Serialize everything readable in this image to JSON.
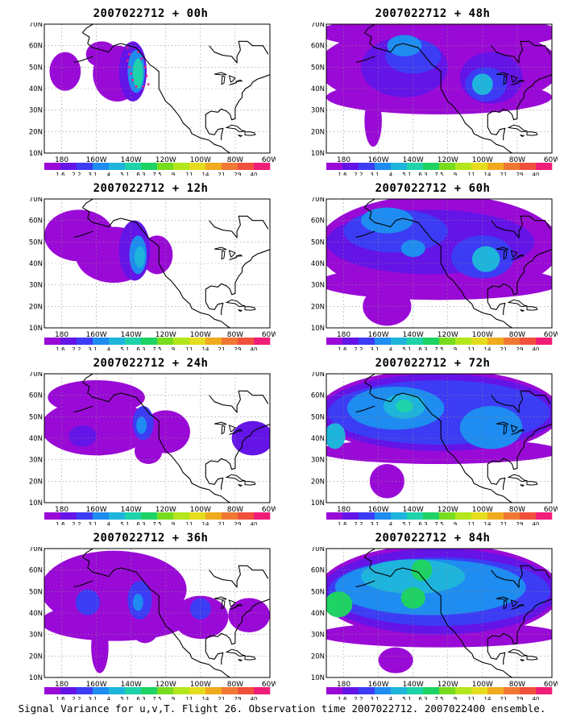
{
  "figure": {
    "caption": "Signal Variance for u,v,T. Flight 26. Observation time 2007022712. 2007022400 ensemble."
  },
  "colors": {
    "levels": [
      "#9a0ad6",
      "#6414e6",
      "#3c3cf5",
      "#1e8cf0",
      "#1eb4dc",
      "#1ed2aa",
      "#1ed264",
      "#78dc1e",
      "#b4e61e",
      "#e6dc1e",
      "#f0aa1e",
      "#f07832",
      "#f0503c",
      "#f01e78"
    ],
    "coast": "#000000",
    "grid": "#8c8c8c",
    "marker": "#f01e78"
  },
  "chart_data": [
    {
      "type": "heatmap",
      "title": "2007022712 + 00h",
      "lead_hours": 0,
      "x_ticks": [
        "180",
        "160W",
        "140W",
        "120W",
        "100W",
        "80W",
        "60W"
      ],
      "y_ticks": [
        "10N",
        "20N",
        "30N",
        "40N",
        "50N",
        "60N",
        "70N"
      ],
      "lon_range": [
        -190,
        -60
      ],
      "lat_range": [
        10,
        70
      ],
      "grid": true,
      "colorbar_labels": [
        "1.6",
        "2.2",
        "3.1",
        "4",
        "5.1",
        "6.3",
        "7.5",
        "9",
        "11",
        "14",
        "21",
        "29",
        "40"
      ],
      "features": [
        {
          "lon": -148,
          "lat": 47,
          "rx": 14,
          "ry": 13,
          "level": 0
        },
        {
          "lon": -178,
          "lat": 48,
          "rx": 9,
          "ry": 9,
          "level": 0
        },
        {
          "lon": -157,
          "lat": 56,
          "rx": 9,
          "ry": 6,
          "level": 0
        },
        {
          "lon": -139,
          "lat": 48,
          "rx": 8,
          "ry": 14,
          "level": 1
        },
        {
          "lon": -137,
          "lat": 48,
          "rx": 5,
          "ry": 10,
          "level": 3
        },
        {
          "lon": -136,
          "lat": 47,
          "rx": 3,
          "ry": 7,
          "level": 5
        }
      ],
      "markers": [
        {
          "lon": -142,
          "lat": 59
        },
        {
          "lon": -141,
          "lat": 56
        },
        {
          "lon": -142,
          "lat": 53
        },
        {
          "lon": -141,
          "lat": 50
        },
        {
          "lon": -140,
          "lat": 47
        },
        {
          "lon": -139,
          "lat": 44
        },
        {
          "lon": -137,
          "lat": 41
        },
        {
          "lon": -133,
          "lat": 41
        },
        {
          "lon": -130,
          "lat": 42
        },
        {
          "lon": -131,
          "lat": 46
        },
        {
          "lon": -132,
          "lat": 50
        },
        {
          "lon": -134,
          "lat": 54
        },
        {
          "lon": -136,
          "lat": 57
        }
      ]
    },
    {
      "type": "heatmap",
      "title": "2007022712 + 12h",
      "lead_hours": 12,
      "x_ticks": [
        "180",
        "160W",
        "140W",
        "120W",
        "100W",
        "80W",
        "60W"
      ],
      "y_ticks": [
        "10N",
        "20N",
        "30N",
        "40N",
        "50N",
        "60N",
        "70N"
      ],
      "lon_range": [
        -190,
        -60
      ],
      "lat_range": [
        10,
        70
      ],
      "grid": true,
      "colorbar_labels": [
        "1.6",
        "2.2",
        "3.1",
        "4",
        "5.1",
        "6.3",
        "7.5",
        "9",
        "11",
        "14",
        "21",
        "29",
        "40"
      ],
      "features": [
        {
          "lon": -170,
          "lat": 53,
          "rx": 20,
          "ry": 12,
          "level": 0
        },
        {
          "lon": -150,
          "lat": 44,
          "rx": 22,
          "ry": 13,
          "level": 0
        },
        {
          "lon": -125,
          "lat": 44,
          "rx": 9,
          "ry": 9,
          "level": 0
        },
        {
          "lon": -138,
          "lat": 46,
          "rx": 9,
          "ry": 14,
          "level": 1
        },
        {
          "lon": -136,
          "lat": 44,
          "rx": 5,
          "ry": 9,
          "level": 3
        },
        {
          "lon": -135,
          "lat": 43,
          "rx": 3,
          "ry": 5,
          "level": 4
        }
      ],
      "markers": []
    },
    {
      "type": "heatmap",
      "title": "2007022712 + 24h",
      "lead_hours": 24,
      "x_ticks": [
        "180",
        "160W",
        "140W",
        "120W",
        "100W",
        "80W",
        "60W"
      ],
      "y_ticks": [
        "10N",
        "20N",
        "30N",
        "40N",
        "50N",
        "60N",
        "70N"
      ],
      "lon_range": [
        -190,
        -60
      ],
      "lat_range": [
        10,
        70
      ],
      "grid": true,
      "colorbar_labels": [
        "1.6",
        "2.2",
        "3.1",
        "4",
        "5.1",
        "6.3",
        "7.5",
        "9",
        "11",
        "14",
        "21",
        "29",
        "40"
      ],
      "features": [
        {
          "lon": -160,
          "lat": 45,
          "rx": 32,
          "ry": 13,
          "level": 0
        },
        {
          "lon": -160,
          "lat": 59,
          "rx": 28,
          "ry": 8,
          "level": 0
        },
        {
          "lon": -120,
          "lat": 43,
          "rx": 14,
          "ry": 10,
          "level": 0
        },
        {
          "lon": -130,
          "lat": 34,
          "rx": 8,
          "ry": 6,
          "level": 0
        },
        {
          "lon": -70,
          "lat": 40,
          "rx": 12,
          "ry": 8,
          "level": 1
        },
        {
          "lon": -168,
          "lat": 41,
          "rx": 8,
          "ry": 5,
          "level": 1
        },
        {
          "lon": -133,
          "lat": 47,
          "rx": 6,
          "ry": 8,
          "level": 2
        },
        {
          "lon": -134,
          "lat": 46,
          "rx": 3,
          "ry": 4,
          "level": 3
        }
      ],
      "markers": []
    },
    {
      "type": "heatmap",
      "title": "2007022712 + 36h",
      "lead_hours": 36,
      "x_ticks": [
        "180",
        "160W",
        "140W",
        "120W",
        "100W",
        "80W",
        "60W"
      ],
      "y_ticks": [
        "10N",
        "20N",
        "30N",
        "40N",
        "50N",
        "60N",
        "70N"
      ],
      "lon_range": [
        -190,
        -60
      ],
      "lat_range": [
        10,
        70
      ],
      "grid": true,
      "colorbar_labels": [
        "1.6",
        "2.2",
        "3.1",
        "4",
        "5.1",
        "6.3",
        "7.5",
        "9",
        "11",
        "14",
        "21",
        "29",
        "40"
      ],
      "features": [
        {
          "lon": -150,
          "lat": 51,
          "rx": 42,
          "ry": 18,
          "level": 0
        },
        {
          "lon": -150,
          "lat": 36,
          "rx": 42,
          "ry": 9,
          "level": 0
        },
        {
          "lon": -100,
          "lat": 38,
          "rx": 16,
          "ry": 10,
          "level": 0
        },
        {
          "lon": -72,
          "lat": 39,
          "rx": 12,
          "ry": 8,
          "level": 0
        },
        {
          "lon": -158,
          "lat": 24,
          "rx": 5,
          "ry": 12,
          "level": 0
        },
        {
          "lon": -132,
          "lat": 33,
          "rx": 8,
          "ry": 7,
          "level": 0
        },
        {
          "lon": -165,
          "lat": 45,
          "rx": 7,
          "ry": 6,
          "level": 2
        },
        {
          "lon": -135,
          "lat": 46,
          "rx": 7,
          "ry": 9,
          "level": 2
        },
        {
          "lon": -100,
          "lat": 42,
          "rx": 6,
          "ry": 5,
          "level": 2
        },
        {
          "lon": -136,
          "lat": 45,
          "rx": 3,
          "ry": 4,
          "level": 3
        }
      ],
      "markers": []
    },
    {
      "type": "heatmap",
      "title": "2007022712 + 48h",
      "lead_hours": 48,
      "x_ticks": [
        "180",
        "160W",
        "140W",
        "120W",
        "100W",
        "80W",
        "60W"
      ],
      "y_ticks": [
        "10N",
        "20N",
        "30N",
        "40N",
        "50N",
        "60N",
        "70N"
      ],
      "lon_range": [
        -190,
        -60
      ],
      "lat_range": [
        10,
        70
      ],
      "grid": true,
      "colorbar_labels": [
        "1.6",
        "2.2",
        "3.1",
        "4",
        "5.1",
        "6.3",
        "7.5",
        "9",
        "11",
        "14",
        "21",
        "29",
        "40"
      ],
      "features": [
        {
          "lon": -125,
          "lat": 50,
          "rx": 70,
          "ry": 20,
          "level": 0
        },
        {
          "lon": -125,
          "lat": 66,
          "rx": 70,
          "ry": 8,
          "level": 0
        },
        {
          "lon": -125,
          "lat": 36,
          "rx": 65,
          "ry": 8,
          "level": 0
        },
        {
          "lon": -163,
          "lat": 25,
          "rx": 5,
          "ry": 12,
          "level": 0
        },
        {
          "lon": -145,
          "lat": 50,
          "rx": 25,
          "ry": 14,
          "level": 1
        },
        {
          "lon": -95,
          "lat": 45,
          "rx": 18,
          "ry": 12,
          "level": 1
        },
        {
          "lon": -140,
          "lat": 55,
          "rx": 16,
          "ry": 8,
          "level": 2
        },
        {
          "lon": -98,
          "lat": 42,
          "rx": 12,
          "ry": 8,
          "level": 2
        },
        {
          "lon": -145,
          "lat": 60,
          "rx": 10,
          "ry": 5,
          "level": 3
        },
        {
          "lon": -100,
          "lat": 42,
          "rx": 6,
          "ry": 5,
          "level": 4
        }
      ],
      "markers": []
    },
    {
      "type": "heatmap",
      "title": "2007022712 + 60h",
      "lead_hours": 60,
      "x_ticks": [
        "180",
        "160W",
        "140W",
        "120W",
        "100W",
        "80W",
        "60W"
      ],
      "y_ticks": [
        "10N",
        "20N",
        "30N",
        "40N",
        "50N",
        "60N",
        "70N"
      ],
      "lon_range": [
        -190,
        -60
      ],
      "lat_range": [
        10,
        70
      ],
      "grid": true,
      "colorbar_labels": [
        "1.6",
        "2.2",
        "3.1",
        "4",
        "5.1",
        "6.3",
        "7.5",
        "9",
        "11",
        "14",
        "21",
        "29",
        "40"
      ],
      "features": [
        {
          "lon": -125,
          "lat": 48,
          "rx": 70,
          "ry": 24,
          "level": 0
        },
        {
          "lon": -125,
          "lat": 31,
          "rx": 70,
          "ry": 8,
          "level": 0
        },
        {
          "lon": -155,
          "lat": 20,
          "rx": 14,
          "ry": 9,
          "level": 0
        },
        {
          "lon": -130,
          "lat": 50,
          "rx": 60,
          "ry": 15,
          "level": 1
        },
        {
          "lon": -150,
          "lat": 55,
          "rx": 30,
          "ry": 10,
          "level": 2
        },
        {
          "lon": -100,
          "lat": 43,
          "rx": 18,
          "ry": 10,
          "level": 2
        },
        {
          "lon": -155,
          "lat": 60,
          "rx": 15,
          "ry": 6,
          "level": 3
        },
        {
          "lon": -98,
          "lat": 42,
          "rx": 8,
          "ry": 6,
          "level": 4
        },
        {
          "lon": -140,
          "lat": 47,
          "rx": 7,
          "ry": 4,
          "level": 3
        }
      ],
      "markers": []
    },
    {
      "type": "heatmap",
      "title": "2007022712 + 72h",
      "lead_hours": 72,
      "x_ticks": [
        "180",
        "160W",
        "140W",
        "120W",
        "100W",
        "80W",
        "60W"
      ],
      "y_ticks": [
        "10N",
        "20N",
        "30N",
        "40N",
        "50N",
        "60N",
        "70N"
      ],
      "lon_range": [
        -190,
        -60
      ],
      "lat_range": [
        10,
        70
      ],
      "grid": true,
      "colorbar_labels": [
        "1.6",
        "2.2",
        "3.1",
        "4",
        "5.1",
        "6.3",
        "7.5",
        "9",
        "11",
        "14",
        "21",
        "29",
        "40"
      ],
      "features": [
        {
          "lon": -125,
          "lat": 52,
          "rx": 70,
          "ry": 20,
          "level": 0
        },
        {
          "lon": -125,
          "lat": 34,
          "rx": 70,
          "ry": 6,
          "level": 0
        },
        {
          "lon": -155,
          "lat": 20,
          "rx": 10,
          "ry": 8,
          "level": 0
        },
        {
          "lon": -125,
          "lat": 52,
          "rx": 68,
          "ry": 18,
          "level": 1
        },
        {
          "lon": -125,
          "lat": 52,
          "rx": 64,
          "ry": 15,
          "level": 2
        },
        {
          "lon": -150,
          "lat": 54,
          "rx": 28,
          "ry": 10,
          "level": 3
        },
        {
          "lon": -95,
          "lat": 45,
          "rx": 18,
          "ry": 10,
          "level": 3
        },
        {
          "lon": -145,
          "lat": 55,
          "rx": 12,
          "ry": 6,
          "level": 4
        },
        {
          "lon": -185,
          "lat": 41,
          "rx": 6,
          "ry": 6,
          "level": 4
        },
        {
          "lon": -145,
          "lat": 55,
          "rx": 5,
          "ry": 3,
          "level": 5
        }
      ],
      "markers": []
    },
    {
      "type": "heatmap",
      "title": "2007022712 + 84h",
      "lead_hours": 84,
      "x_ticks": [
        "180",
        "160W",
        "140W",
        "120W",
        "100W",
        "80W",
        "60W"
      ],
      "y_ticks": [
        "10N",
        "20N",
        "30N",
        "40N",
        "50N",
        "60N",
        "70N"
      ],
      "lon_range": [
        -190,
        -60
      ],
      "lat_range": [
        10,
        70
      ],
      "grid": true,
      "colorbar_labels": [
        "1.6",
        "2.2",
        "3.1",
        "4",
        "5.1",
        "6.3",
        "7.5",
        "9",
        "11",
        "14",
        "21",
        "29",
        "40"
      ],
      "features": [
        {
          "lon": -125,
          "lat": 50,
          "rx": 70,
          "ry": 22,
          "level": 0
        },
        {
          "lon": -125,
          "lat": 30,
          "rx": 70,
          "ry": 6,
          "level": 0
        },
        {
          "lon": -150,
          "lat": 18,
          "rx": 10,
          "ry": 6,
          "level": 0
        },
        {
          "lon": -125,
          "lat": 50,
          "rx": 68,
          "ry": 20,
          "level": 1
        },
        {
          "lon": -125,
          "lat": 50,
          "rx": 64,
          "ry": 16,
          "level": 2
        },
        {
          "lon": -130,
          "lat": 52,
          "rx": 55,
          "ry": 13,
          "level": 3
        },
        {
          "lon": -140,
          "lat": 57,
          "rx": 30,
          "ry": 8,
          "level": 4
        },
        {
          "lon": -183,
          "lat": 44,
          "rx": 8,
          "ry": 6,
          "level": 6
        },
        {
          "lon": -140,
          "lat": 47,
          "rx": 7,
          "ry": 5,
          "level": 6
        },
        {
          "lon": -135,
          "lat": 60,
          "rx": 6,
          "ry": 5,
          "level": 6
        }
      ],
      "markers": []
    }
  ]
}
